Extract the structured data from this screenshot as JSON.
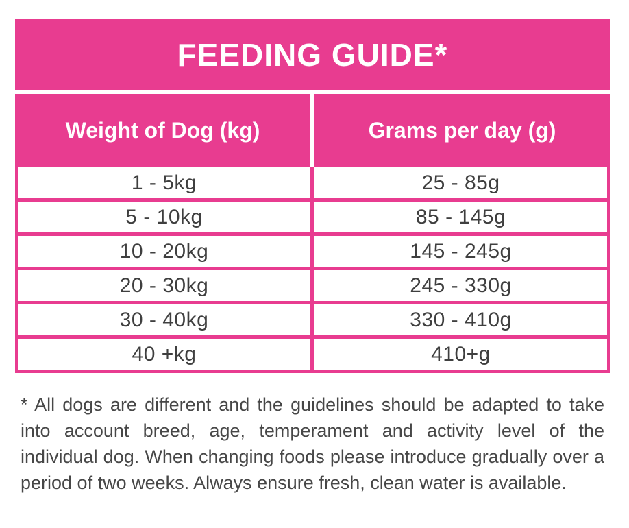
{
  "colors": {
    "pink": "#E83C90",
    "body_text": "#3F3F3F",
    "header_text": "#FFFFFF"
  },
  "title": "FEEDING GUIDE*",
  "table": {
    "columns": [
      "Weight of Dog (kg)",
      "Grams per day (g)"
    ],
    "rows": [
      [
        "1 - 5kg",
        "25 - 85g"
      ],
      [
        "5 - 10kg",
        "85 - 145g"
      ],
      [
        "10 - 20kg",
        "145 - 245g"
      ],
      [
        "20 - 30kg",
        "245 - 330g"
      ],
      [
        "30 - 40kg",
        "330 - 410g"
      ],
      [
        "40 +kg",
        "410+g"
      ]
    ]
  },
  "footnote": "* All dogs are different and the guidelines should be adapted to take into account breed, age, temperament and activity level of the individual dog. When changing foods please introduce gradually over a period of two weeks. Always ensure fresh, clean water is available."
}
